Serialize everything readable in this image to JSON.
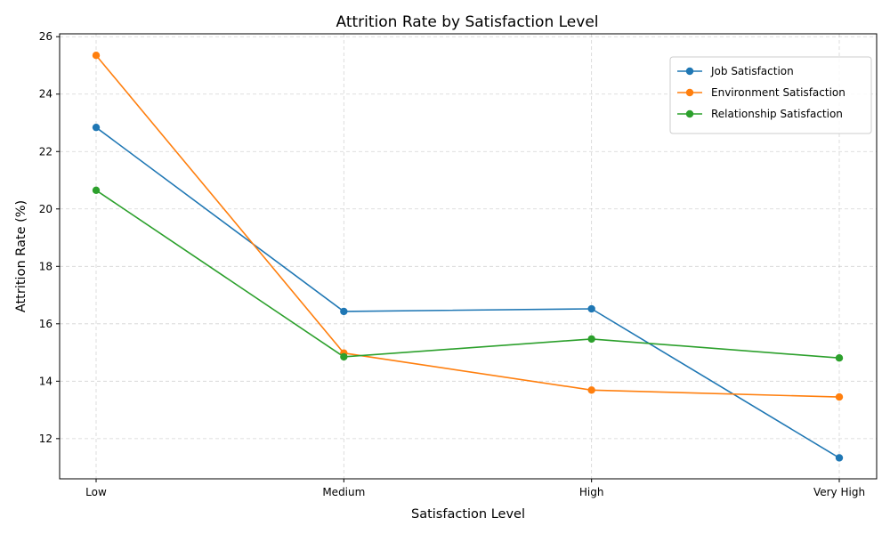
{
  "chart_data": {
    "type": "line",
    "title": "Attrition Rate by Satisfaction Level",
    "xlabel": "Satisfaction Level",
    "ylabel": "Attrition Rate (%)",
    "categories": [
      "Low",
      "Medium",
      "High",
      "Very High"
    ],
    "ylim": [
      10.6,
      26.1
    ],
    "yticks": [
      12,
      14,
      16,
      18,
      20,
      22,
      24,
      26
    ],
    "grid": true,
    "legend_position": "top-right",
    "series": [
      {
        "name": "Job Satisfaction",
        "color": "#1f77b4",
        "values": [
          22.84,
          16.43,
          16.52,
          11.33
        ]
      },
      {
        "name": "Environment Satisfaction",
        "color": "#ff7f0e",
        "values": [
          25.35,
          14.98,
          13.69,
          13.45
        ]
      },
      {
        "name": "Relationship Satisfaction",
        "color": "#2ca02c",
        "values": [
          20.65,
          14.85,
          15.47,
          14.81
        ]
      }
    ]
  }
}
